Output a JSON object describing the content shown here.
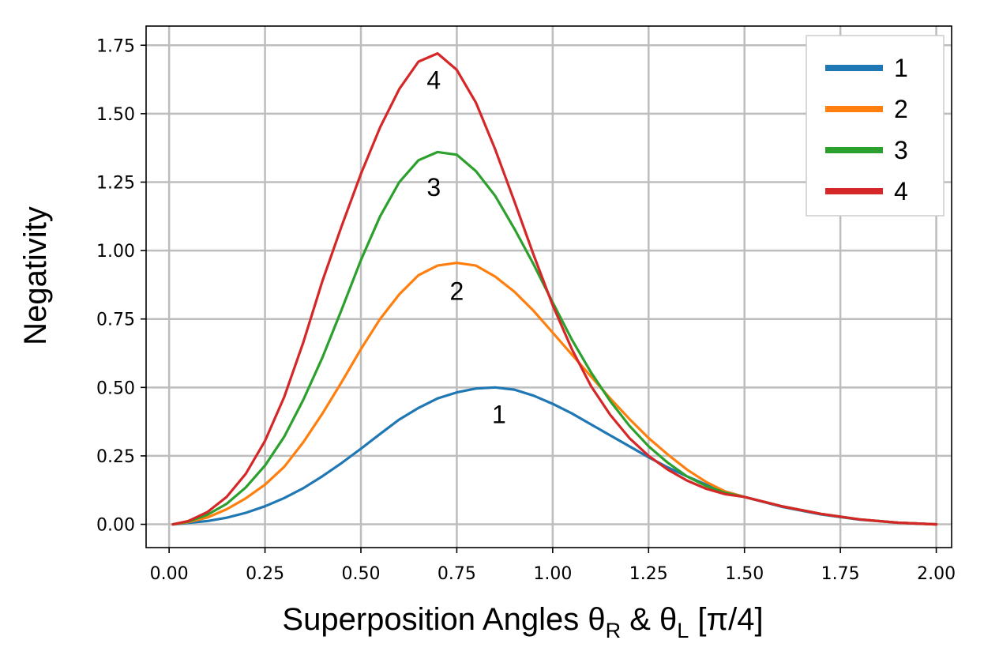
{
  "chart_data": {
    "type": "line",
    "xlabel_main": "Superposition Angles θ",
    "xlabel_sub1": "R",
    "xlabel_mid": " & θ",
    "xlabel_sub2": "L",
    "xlabel_end": " [π/4]",
    "ylabel": "Negativity",
    "xlim": [
      -0.06,
      2.04
    ],
    "ylim": [
      -0.085,
      1.82
    ],
    "xticks": [
      0.0,
      0.25,
      0.5,
      0.75,
      1.0,
      1.25,
      1.5,
      1.75,
      2.0
    ],
    "xtick_labels": [
      "0.00",
      "0.25",
      "0.50",
      "0.75",
      "1.00",
      "1.25",
      "1.50",
      "1.75",
      "2.00"
    ],
    "yticks": [
      0.0,
      0.25,
      0.5,
      0.75,
      1.0,
      1.25,
      1.5,
      1.75
    ],
    "ytick_labels": [
      "0.00",
      "0.25",
      "0.50",
      "0.75",
      "1.00",
      "1.25",
      "1.50",
      "1.75"
    ],
    "grid": true,
    "legend_position": "top-right",
    "x": [
      0.01,
      0.05,
      0.1,
      0.15,
      0.2,
      0.25,
      0.3,
      0.35,
      0.4,
      0.45,
      0.5,
      0.55,
      0.6,
      0.65,
      0.7,
      0.75,
      0.8,
      0.85,
      0.9,
      0.95,
      1.0,
      1.05,
      1.1,
      1.15,
      1.2,
      1.25,
      1.3,
      1.35,
      1.4,
      1.45,
      1.5,
      1.6,
      1.7,
      1.8,
      1.9,
      2.0
    ],
    "series": [
      {
        "name": "1",
        "color": "#1f77b4",
        "values": [
          0.0,
          0.005,
          0.012,
          0.024,
          0.042,
          0.066,
          0.096,
          0.132,
          0.176,
          0.224,
          0.276,
          0.33,
          0.383,
          0.425,
          0.46,
          0.482,
          0.496,
          0.5,
          0.492,
          0.47,
          0.44,
          0.405,
          0.365,
          0.325,
          0.285,
          0.245,
          0.208,
          0.175,
          0.145,
          0.12,
          0.1,
          0.063,
          0.036,
          0.017,
          0.006,
          0.0
        ]
      },
      {
        "name": "2",
        "color": "#ff7f0e",
        "values": [
          0.0,
          0.008,
          0.025,
          0.055,
          0.095,
          0.145,
          0.21,
          0.3,
          0.405,
          0.52,
          0.64,
          0.75,
          0.84,
          0.91,
          0.945,
          0.955,
          0.945,
          0.905,
          0.85,
          0.78,
          0.7,
          0.62,
          0.54,
          0.46,
          0.385,
          0.315,
          0.255,
          0.2,
          0.155,
          0.12,
          0.1,
          0.065,
          0.038,
          0.018,
          0.006,
          0.0
        ]
      },
      {
        "name": "3",
        "color": "#2ca02c",
        "values": [
          0.0,
          0.01,
          0.035,
          0.075,
          0.135,
          0.215,
          0.32,
          0.455,
          0.61,
          0.785,
          0.965,
          1.125,
          1.25,
          1.33,
          1.36,
          1.35,
          1.29,
          1.2,
          1.08,
          0.95,
          0.81,
          0.675,
          0.555,
          0.45,
          0.36,
          0.285,
          0.225,
          0.175,
          0.14,
          0.115,
          0.1,
          0.065,
          0.038,
          0.018,
          0.006,
          0.0
        ]
      },
      {
        "name": "4",
        "color": "#d62728",
        "values": [
          0.0,
          0.012,
          0.045,
          0.1,
          0.185,
          0.305,
          0.465,
          0.665,
          0.89,
          1.09,
          1.28,
          1.45,
          1.59,
          1.69,
          1.72,
          1.66,
          1.54,
          1.37,
          1.18,
          0.985,
          0.8,
          0.64,
          0.505,
          0.4,
          0.315,
          0.25,
          0.2,
          0.16,
          0.13,
          0.11,
          0.1,
          0.065,
          0.038,
          0.018,
          0.006,
          0.0
        ]
      }
    ],
    "annotations": [
      {
        "text": "1",
        "x": 0.86,
        "y": 0.37
      },
      {
        "text": "2",
        "x": 0.75,
        "y": 0.82
      },
      {
        "text": "3",
        "x": 0.69,
        "y": 1.2
      },
      {
        "text": "4",
        "x": 0.69,
        "y": 1.59
      }
    ]
  }
}
